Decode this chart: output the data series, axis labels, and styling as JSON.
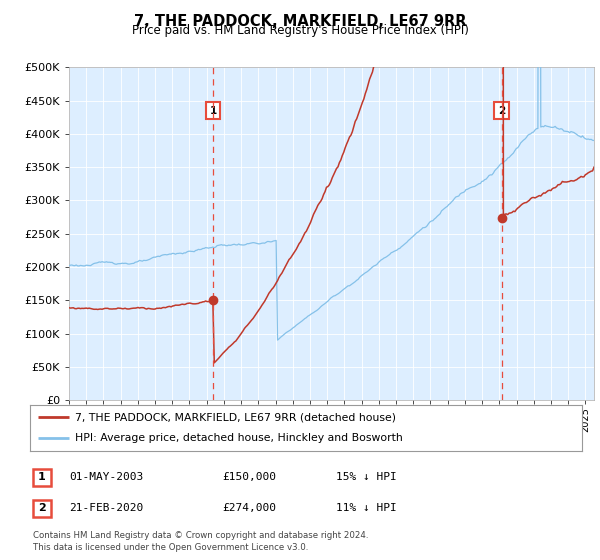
{
  "title": "7, THE PADDOCK, MARKFIELD, LE67 9RR",
  "subtitle": "Price paid vs. HM Land Registry's House Price Index (HPI)",
  "xlim_start": 1995.0,
  "xlim_end": 2025.5,
  "ylim": [
    0,
    500000
  ],
  "yticks": [
    0,
    50000,
    100000,
    150000,
    200000,
    250000,
    300000,
    350000,
    400000,
    450000,
    500000
  ],
  "ytick_labels": [
    "£0",
    "£50K",
    "£100K",
    "£150K",
    "£200K",
    "£250K",
    "£300K",
    "£350K",
    "£400K",
    "£450K",
    "£500K"
  ],
  "red_line_color": "#c0392b",
  "blue_line_color": "#85c1e9",
  "vline_color": "#e74c3c",
  "bg_color": "#ddeeff",
  "sale1_x": 2003.375,
  "sale1_y": 150000,
  "sale2_x": 2020.13,
  "sale2_y": 274000,
  "legend_red": "7, THE PADDOCK, MARKFIELD, LE67 9RR (detached house)",
  "legend_blue": "HPI: Average price, detached house, Hinckley and Bosworth",
  "table_row1": [
    "1",
    "01-MAY-2003",
    "£150,000",
    "15% ↓ HPI"
  ],
  "table_row2": [
    "2",
    "21-FEB-2020",
    "£274,000",
    "11% ↓ HPI"
  ],
  "footer": "Contains HM Land Registry data © Crown copyright and database right 2024.\nThis data is licensed under the Open Government Licence v3.0."
}
